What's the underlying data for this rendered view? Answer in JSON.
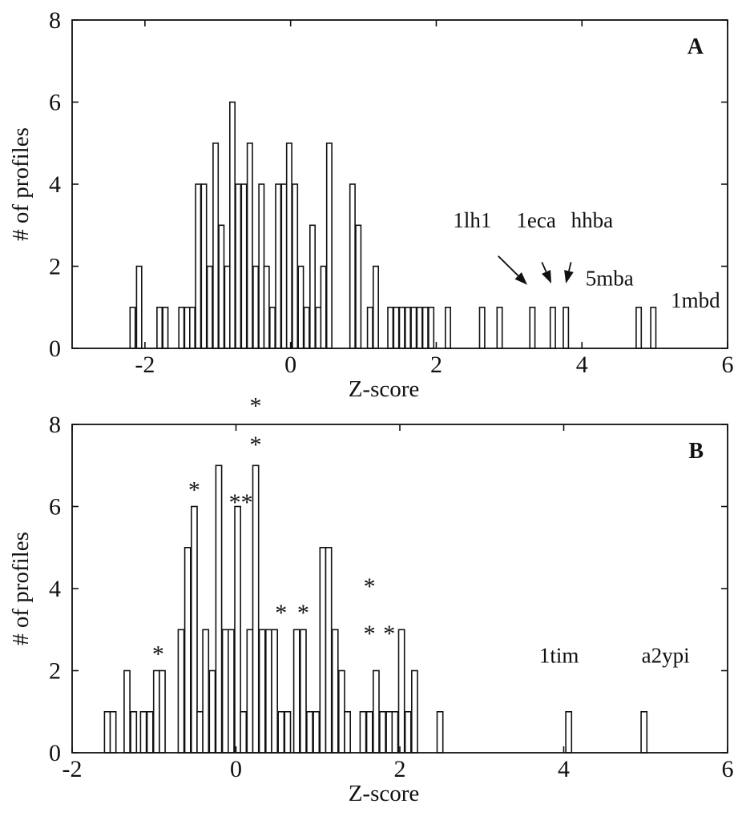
{
  "chart_data": [
    {
      "type": "bar",
      "panel": "A",
      "xlabel": "Z-score",
      "ylabel": "# of profiles",
      "xlim": [
        -3,
        6
      ],
      "ylim": [
        0,
        8
      ],
      "xticks": [
        -2,
        0,
        2,
        4,
        6
      ],
      "yticks": [
        0,
        2,
        4,
        6,
        8
      ],
      "bar_width": 0.07,
      "bars": [
        {
          "x": -2.17,
          "y": 1
        },
        {
          "x": -2.08,
          "y": 2
        },
        {
          "x": -1.8,
          "y": 1
        },
        {
          "x": -1.72,
          "y": 1
        },
        {
          "x": -1.5,
          "y": 1
        },
        {
          "x": -1.42,
          "y": 1
        },
        {
          "x": -1.35,
          "y": 1
        },
        {
          "x": -1.27,
          "y": 4
        },
        {
          "x": -1.19,
          "y": 4
        },
        {
          "x": -1.11,
          "y": 2
        },
        {
          "x": -1.03,
          "y": 5
        },
        {
          "x": -0.95,
          "y": 3
        },
        {
          "x": -0.87,
          "y": 2
        },
        {
          "x": -0.8,
          "y": 6
        },
        {
          "x": -0.72,
          "y": 4
        },
        {
          "x": -0.64,
          "y": 4
        },
        {
          "x": -0.56,
          "y": 5
        },
        {
          "x": -0.48,
          "y": 2
        },
        {
          "x": -0.4,
          "y": 4
        },
        {
          "x": -0.33,
          "y": 2
        },
        {
          "x": -0.25,
          "y": 1
        },
        {
          "x": -0.17,
          "y": 4
        },
        {
          "x": -0.09,
          "y": 4
        },
        {
          "x": -0.02,
          "y": 5
        },
        {
          "x": 0.06,
          "y": 4
        },
        {
          "x": 0.14,
          "y": 2
        },
        {
          "x": 0.22,
          "y": 1
        },
        {
          "x": 0.3,
          "y": 3
        },
        {
          "x": 0.38,
          "y": 1
        },
        {
          "x": 0.45,
          "y": 2
        },
        {
          "x": 0.53,
          "y": 5
        },
        {
          "x": 0.85,
          "y": 4
        },
        {
          "x": 0.93,
          "y": 3
        },
        {
          "x": 1.09,
          "y": 1
        },
        {
          "x": 1.17,
          "y": 2
        },
        {
          "x": 1.37,
          "y": 1
        },
        {
          "x": 1.45,
          "y": 1
        },
        {
          "x": 1.53,
          "y": 1
        },
        {
          "x": 1.61,
          "y": 1
        },
        {
          "x": 1.69,
          "y": 1
        },
        {
          "x": 1.77,
          "y": 1
        },
        {
          "x": 1.85,
          "y": 1
        },
        {
          "x": 1.93,
          "y": 1
        },
        {
          "x": 2.16,
          "y": 1
        },
        {
          "x": 2.63,
          "y": 1
        },
        {
          "x": 2.87,
          "y": 1
        },
        {
          "x": 3.32,
          "y": 1
        },
        {
          "x": 3.6,
          "y": 1
        },
        {
          "x": 3.78,
          "y": 1
        },
        {
          "x": 4.78,
          "y": 1
        },
        {
          "x": 4.98,
          "y": 1
        }
      ],
      "annotations": [
        {
          "text": "1lh1",
          "x": 2.23,
          "y": 2.95
        },
        {
          "text": "1eca",
          "x": 3.1,
          "y": 2.95
        },
        {
          "text": "hhba",
          "x": 3.85,
          "y": 2.95
        },
        {
          "text": "5mba",
          "x": 4.05,
          "y": 1.53
        },
        {
          "text": "1mbd",
          "x": 5.22,
          "y": 1.0
        }
      ],
      "arrows": [
        {
          "from": [
            2.85,
            2.25
          ],
          "to": [
            3.25,
            1.55
          ]
        },
        {
          "from": [
            3.45,
            2.1
          ],
          "to": [
            3.58,
            1.58
          ]
        },
        {
          "from": [
            3.85,
            2.1
          ],
          "to": [
            3.78,
            1.58
          ]
        }
      ],
      "stars": []
    },
    {
      "type": "bar",
      "panel": "B",
      "xlabel": "Z-score",
      "ylabel": "# of profiles",
      "xlim": [
        -2,
        6
      ],
      "ylim": [
        0,
        8
      ],
      "xticks": [
        -2,
        0,
        2,
        4,
        6
      ],
      "yticks": [
        0,
        2,
        4,
        6,
        8
      ],
      "bar_width": 0.07,
      "bars": [
        {
          "x": -1.57,
          "y": 1
        },
        {
          "x": -1.5,
          "y": 1
        },
        {
          "x": -1.33,
          "y": 2
        },
        {
          "x": -1.25,
          "y": 1
        },
        {
          "x": -1.13,
          "y": 1
        },
        {
          "x": -1.05,
          "y": 1
        },
        {
          "x": -0.97,
          "y": 2
        },
        {
          "x": -0.9,
          "y": 2
        },
        {
          "x": -0.67,
          "y": 3
        },
        {
          "x": -0.59,
          "y": 5
        },
        {
          "x": -0.51,
          "y": 6
        },
        {
          "x": -0.44,
          "y": 1
        },
        {
          "x": -0.37,
          "y": 3
        },
        {
          "x": -0.29,
          "y": 2
        },
        {
          "x": -0.21,
          "y": 7
        },
        {
          "x": -0.13,
          "y": 3
        },
        {
          "x": -0.06,
          "y": 3
        },
        {
          "x": 0.02,
          "y": 6
        },
        {
          "x": 0.09,
          "y": 1
        },
        {
          "x": 0.17,
          "y": 3
        },
        {
          "x": 0.24,
          "y": 7
        },
        {
          "x": 0.32,
          "y": 3
        },
        {
          "x": 0.4,
          "y": 3
        },
        {
          "x": 0.47,
          "y": 3
        },
        {
          "x": 0.55,
          "y": 1
        },
        {
          "x": 0.63,
          "y": 1
        },
        {
          "x": 0.74,
          "y": 3
        },
        {
          "x": 0.82,
          "y": 3
        },
        {
          "x": 0.9,
          "y": 1
        },
        {
          "x": 0.98,
          "y": 1
        },
        {
          "x": 1.06,
          "y": 5
        },
        {
          "x": 1.13,
          "y": 5
        },
        {
          "x": 1.21,
          "y": 3
        },
        {
          "x": 1.29,
          "y": 2
        },
        {
          "x": 1.36,
          "y": 1
        },
        {
          "x": 1.55,
          "y": 1
        },
        {
          "x": 1.63,
          "y": 1
        },
        {
          "x": 1.71,
          "y": 2
        },
        {
          "x": 1.79,
          "y": 1
        },
        {
          "x": 1.87,
          "y": 1
        },
        {
          "x": 1.94,
          "y": 1
        },
        {
          "x": 2.02,
          "y": 3
        },
        {
          "x": 2.1,
          "y": 1
        },
        {
          "x": 2.18,
          "y": 2
        },
        {
          "x": 2.49,
          "y": 1
        },
        {
          "x": 4.06,
          "y": 1
        },
        {
          "x": 4.98,
          "y": 1
        }
      ],
      "annotations": [
        {
          "text": "1tim",
          "x": 3.7,
          "y": 2.2
        },
        {
          "text": "a2ypi",
          "x": 4.95,
          "y": 2.2
        }
      ],
      "arrows": [],
      "stars": [
        {
          "text": "*",
          "x": -0.95,
          "y": 2.45
        },
        {
          "text": "*",
          "x": -0.51,
          "y": 6.45
        },
        {
          "text": "**",
          "x": 0.06,
          "y": 6.15
        },
        {
          "text": "*",
          "x": 0.24,
          "y": 8.5
        },
        {
          "text": "*",
          "x": 0.24,
          "y": 7.55
        },
        {
          "text": "*",
          "x": 0.55,
          "y": 3.45
        },
        {
          "text": "*",
          "x": 0.82,
          "y": 3.45
        },
        {
          "text": "*",
          "x": 1.63,
          "y": 4.1
        },
        {
          "text": "*",
          "x": 1.63,
          "y": 2.95
        },
        {
          "text": "*",
          "x": 1.87,
          "y": 2.95
        }
      ]
    }
  ]
}
